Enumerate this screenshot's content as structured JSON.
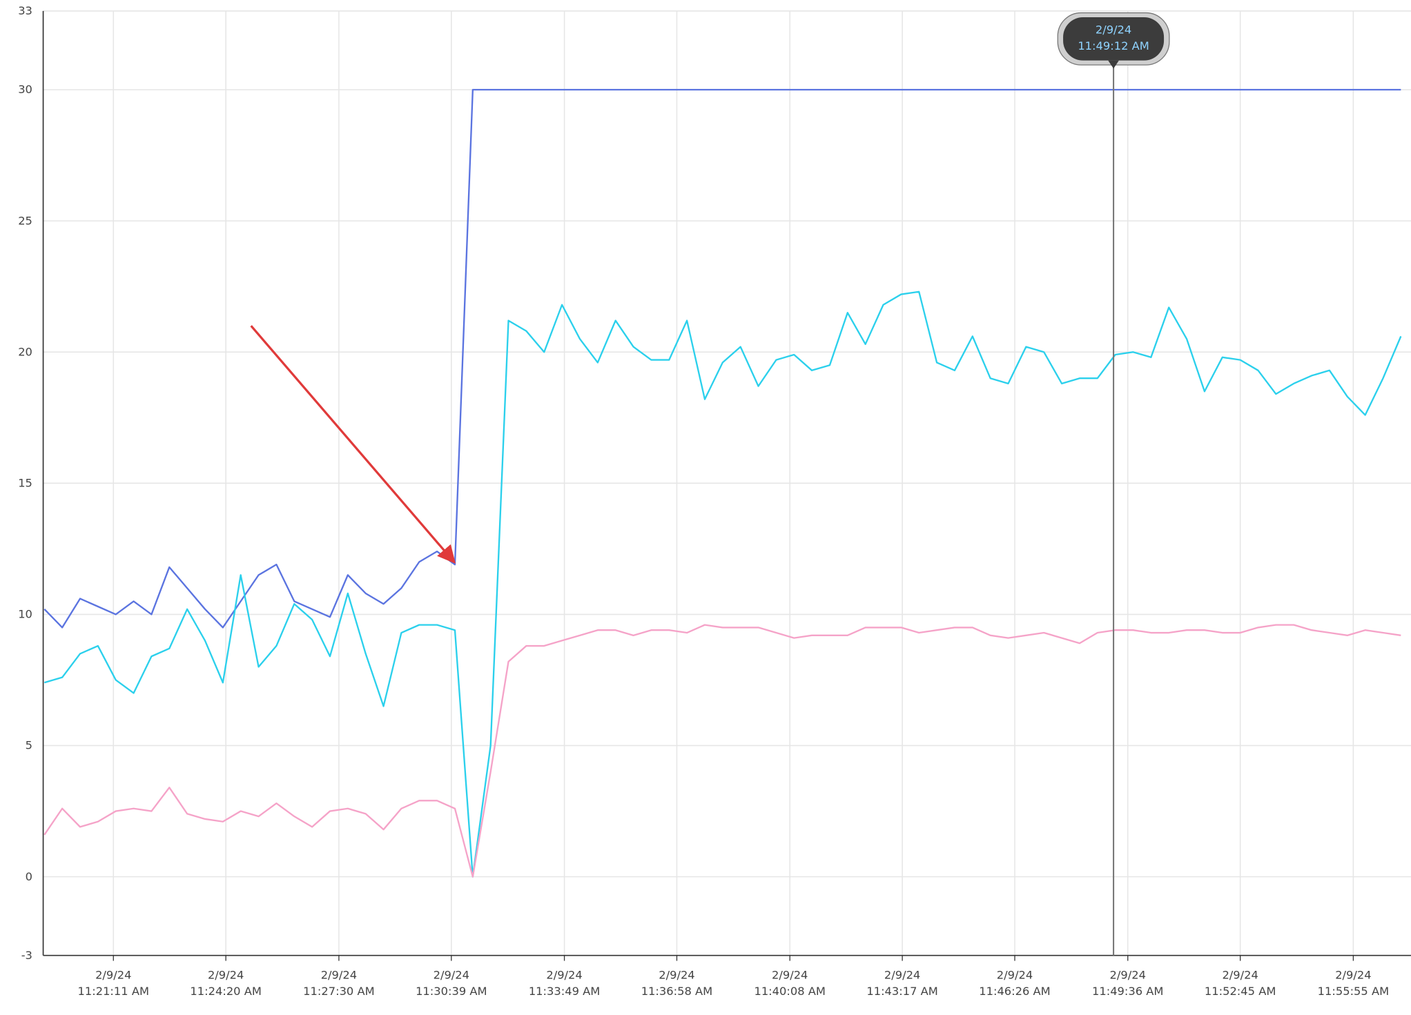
{
  "chart_data": {
    "type": "line",
    "x": [
      "2/9/24 11:19:15 AM",
      "2/9/24 11:19:45 AM",
      "2/9/24 11:20:15 AM",
      "2/9/24 11:20:45 AM",
      "2/9/24 11:21:15 AM",
      "2/9/24 11:21:45 AM",
      "2/9/24 11:22:15 AM",
      "2/9/24 11:22:45 AM",
      "2/9/24 11:23:15 AM",
      "2/9/24 11:23:45 AM",
      "2/9/24 11:24:15 AM",
      "2/9/24 11:24:45 AM",
      "2/9/24 11:25:15 AM",
      "2/9/24 11:25:45 AM",
      "2/9/24 11:26:15 AM",
      "2/9/24 11:26:45 AM",
      "2/9/24 11:27:15 AM",
      "2/9/24 11:27:45 AM",
      "2/9/24 11:28:15 AM",
      "2/9/24 11:28:45 AM",
      "2/9/24 11:29:15 AM",
      "2/9/24 11:29:45 AM",
      "2/9/24 11:30:15 AM",
      "2/9/24 11:30:45 AM",
      "2/9/24 11:31:15 AM",
      "2/9/24 11:31:45 AM",
      "2/9/24 11:32:15 AM",
      "2/9/24 11:32:45 AM",
      "2/9/24 11:33:15 AM",
      "2/9/24 11:33:45 AM",
      "2/9/24 11:34:15 AM",
      "2/9/24 11:34:45 AM",
      "2/9/24 11:35:15 AM",
      "2/9/24 11:35:45 AM",
      "2/9/24 11:36:15 AM",
      "2/9/24 11:36:45 AM",
      "2/9/24 11:37:15 AM",
      "2/9/24 11:37:45 AM",
      "2/9/24 11:38:15 AM",
      "2/9/24 11:38:45 AM",
      "2/9/24 11:39:15 AM",
      "2/9/24 11:39:45 AM",
      "2/9/24 11:40:15 AM",
      "2/9/24 11:40:45 AM",
      "2/9/24 11:41:15 AM",
      "2/9/24 11:41:45 AM",
      "2/9/24 11:42:15 AM",
      "2/9/24 11:42:45 AM",
      "2/9/24 11:43:15 AM",
      "2/9/24 11:43:45 AM",
      "2/9/24 11:44:15 AM",
      "2/9/24 11:44:45 AM",
      "2/9/24 11:45:15 AM",
      "2/9/24 11:45:45 AM",
      "2/9/24 11:46:15 AM",
      "2/9/24 11:46:45 AM",
      "2/9/24 11:47:15 AM",
      "2/9/24 11:47:45 AM",
      "2/9/24 11:48:15 AM",
      "2/9/24 11:48:45 AM",
      "2/9/24 11:49:15 AM",
      "2/9/24 11:49:45 AM",
      "2/9/24 11:50:15 AM",
      "2/9/24 11:50:45 AM",
      "2/9/24 11:51:15 AM",
      "2/9/24 11:51:45 AM",
      "2/9/24 11:52:15 AM",
      "2/9/24 11:52:45 AM",
      "2/9/24 11:53:15 AM",
      "2/9/24 11:53:45 AM",
      "2/9/24 11:54:15 AM",
      "2/9/24 11:54:45 AM",
      "2/9/24 11:55:15 AM",
      "2/9/24 11:55:45 AM",
      "2/9/24 11:56:15 AM",
      "2/9/24 11:56:45 AM",
      "2/9/24 11:57:15 AM"
    ],
    "series": [
      {
        "color": "#5b74e0",
        "values": [
          10.2,
          9.5,
          10.6,
          10.3,
          10.0,
          10.5,
          10.0,
          11.8,
          11.0,
          10.2,
          9.5,
          10.5,
          11.5,
          11.9,
          10.5,
          10.2,
          9.9,
          11.5,
          10.8,
          10.4,
          11.0,
          12.0,
          12.4,
          11.9,
          30,
          30,
          30,
          30,
          30,
          30,
          30,
          30,
          30,
          30,
          30,
          30,
          30,
          30,
          30,
          30,
          30,
          30,
          30,
          30,
          30,
          30,
          30,
          30,
          30,
          30,
          30,
          30,
          30,
          30,
          30,
          30,
          30,
          30,
          30,
          30,
          30,
          30,
          30,
          30,
          30,
          30,
          30,
          30,
          30,
          30,
          30,
          30,
          30,
          30,
          30,
          30,
          30
        ]
      },
      {
        "color": "#2bd0ec",
        "values": [
          7.4,
          7.6,
          8.5,
          8.8,
          7.5,
          7.0,
          8.4,
          8.7,
          10.2,
          9.0,
          7.4,
          11.5,
          8.0,
          8.8,
          10.4,
          9.8,
          8.4,
          10.8,
          8.5,
          6.5,
          9.3,
          9.6,
          9.6,
          9.4,
          0,
          5.0,
          21.2,
          20.8,
          20.0,
          21.8,
          20.5,
          19.6,
          21.2,
          20.2,
          19.7,
          19.7,
          21.2,
          18.2,
          19.6,
          20.2,
          18.7,
          19.7,
          19.9,
          19.3,
          19.5,
          21.5,
          20.3,
          21.8,
          22.2,
          22.3,
          19.6,
          19.3,
          20.6,
          19.0,
          18.8,
          20.2,
          20.0,
          18.8,
          19.0,
          19.0,
          19.9,
          20.0,
          19.8,
          21.7,
          20.5,
          18.5,
          19.8,
          19.7,
          19.3,
          18.4,
          18.8,
          19.1,
          19.3,
          18.3,
          17.6,
          19.0,
          20.6
        ]
      },
      {
        "color": "#f5a3c8",
        "values": [
          1.6,
          2.6,
          1.9,
          2.1,
          2.5,
          2.6,
          2.5,
          3.4,
          2.4,
          2.2,
          2.1,
          2.5,
          2.3,
          2.8,
          2.3,
          1.9,
          2.5,
          2.6,
          2.4,
          1.8,
          2.6,
          2.9,
          2.9,
          2.6,
          0,
          4.0,
          8.2,
          8.8,
          8.8,
          9.0,
          9.2,
          9.4,
          9.4,
          9.2,
          9.4,
          9.4,
          9.3,
          9.6,
          9.5,
          9.5,
          9.5,
          9.3,
          9.1,
          9.2,
          9.2,
          9.2,
          9.5,
          9.5,
          9.5,
          9.3,
          9.4,
          9.5,
          9.5,
          9.2,
          9.1,
          9.2,
          9.3,
          9.1,
          8.9,
          9.3,
          9.4,
          9.4,
          9.3,
          9.3,
          9.4,
          9.4,
          9.3,
          9.3,
          9.5,
          9.6,
          9.6,
          9.4,
          9.3,
          9.2,
          9.4,
          9.3,
          9.2
        ]
      }
    ],
    "xlim": [
      "2/9/24 11:19:13 AM",
      "2/9/24 11:57:32 AM"
    ],
    "xticks": [
      "2/9/24 11:21:11 AM",
      "2/9/24 11:24:20 AM",
      "2/9/24 11:27:30 AM",
      "2/9/24 11:30:39 AM",
      "2/9/24 11:33:49 AM",
      "2/9/24 11:36:58 AM",
      "2/9/24 11:40:08 AM",
      "2/9/24 11:43:17 AM",
      "2/9/24 11:46:26 AM",
      "2/9/24 11:49:36 AM",
      "2/9/24 11:52:45 AM",
      "2/9/24 11:55:55 AM"
    ],
    "ylim": [
      -3,
      33
    ],
    "yticks": [
      -3,
      0,
      5,
      10,
      15,
      20,
      25,
      30,
      33
    ],
    "grid": true,
    "cursor": "2/9/24 11:49:12 AM"
  }
}
